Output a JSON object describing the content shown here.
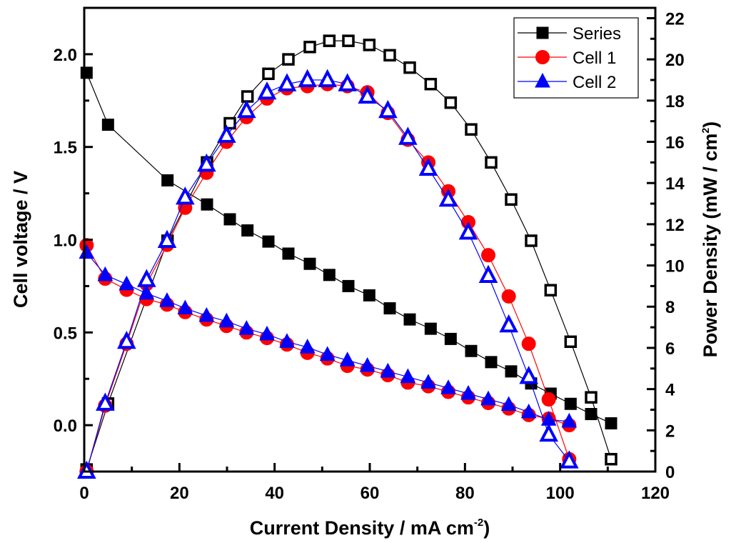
{
  "chart_data": {
    "type": "line",
    "title": "",
    "xlabel": "Current Density / mA cm",
    "xlabel_sup": "-2",
    "xlabel_suffix": ")",
    "ylabel": "Cell voltage / V",
    "y2label": "Power Density (mW / cm",
    "y2label_sup": "2",
    "y2label_suffix": ")",
    "xlim": [
      0,
      120
    ],
    "ylim": [
      -0.25,
      2.25
    ],
    "y2lim": [
      0,
      22.5
    ],
    "xticks": [
      0,
      20,
      40,
      60,
      80,
      100,
      120
    ],
    "yticks": [
      0.0,
      0.5,
      1.0,
      1.5,
      2.0
    ],
    "ytick_labels": [
      "0.0",
      "0.5",
      "1.0",
      "1.5",
      "2.0"
    ],
    "y2ticks": [
      0,
      2,
      4,
      6,
      8,
      10,
      12,
      14,
      16,
      18,
      20,
      22
    ],
    "grid": false,
    "legend_position": "top-right",
    "legend": [
      {
        "name": "Series",
        "color": "#000000",
        "marker": "square"
      },
      {
        "name": "Cell 1",
        "color": "#ff0000",
        "marker": "circle"
      },
      {
        "name": "Cell 2",
        "color": "#0000ff",
        "marker": "triangle"
      }
    ],
    "series": [
      {
        "name": "Series",
        "color": "#000000",
        "marker": "square",
        "current": [
          0.5,
          5,
          17.5,
          25.8,
          30.6,
          34.3,
          38.7,
          42.9,
          47.4,
          51.5,
          55.5,
          59.9,
          64.2,
          68.4,
          72.8,
          77,
          81.3,
          85.5,
          89.7,
          93.9,
          98,
          102.2,
          106.5,
          110.7
        ],
        "voltage": [
          1.9,
          1.62,
          1.32,
          1.19,
          1.11,
          1.05,
          0.99,
          0.925,
          0.87,
          0.81,
          0.75,
          0.7,
          0.63,
          0.57,
          0.52,
          0.465,
          0.4,
          0.34,
          0.29,
          0.225,
          0.17,
          0.115,
          0.06,
          0.01
        ],
        "power": [
          0.1,
          3.3,
          11.2,
          15.0,
          16.9,
          18.2,
          19.3,
          20.0,
          20.6,
          20.9,
          20.9,
          20.7,
          20.2,
          19.6,
          18.8,
          17.9,
          16.6,
          15.0,
          13.2,
          11.2,
          8.8,
          6.3,
          3.6,
          0.6
        ]
      },
      {
        "name": "Cell 1",
        "color": "#ff0000",
        "marker": "circle",
        "current": [
          0.5,
          4.4,
          8.9,
          13.1,
          17.4,
          21.2,
          25.7,
          29.9,
          34.1,
          38.4,
          42.6,
          46.9,
          51.1,
          55.3,
          59.5,
          63.8,
          68,
          72.3,
          76.5,
          80.7,
          84.9,
          89.2,
          93.4,
          97.6,
          101.9
        ],
        "voltage": [
          0.97,
          0.79,
          0.73,
          0.68,
          0.65,
          0.61,
          0.57,
          0.535,
          0.5,
          0.47,
          0.435,
          0.39,
          0.36,
          0.32,
          0.3,
          0.27,
          0.23,
          0.21,
          0.18,
          0.15,
          0.12,
          0.09,
          0.055,
          0.035,
          0.0
        ],
        "power": [
          0.0,
          3.2,
          6.2,
          9.1,
          11.0,
          12.8,
          14.5,
          16.0,
          17.2,
          18.1,
          18.6,
          18.7,
          18.8,
          18.7,
          18.4,
          17.4,
          16.1,
          15.0,
          13.6,
          12.1,
          10.5,
          8.5,
          6.2,
          3.5,
          0.6
        ]
      },
      {
        "name": "Cell 2",
        "color": "#0000ff",
        "marker": "triangle",
        "current": [
          0.5,
          4.4,
          8.9,
          13.1,
          17.4,
          21.2,
          25.7,
          29.9,
          34.1,
          38.4,
          42.6,
          46.9,
          51.1,
          55.3,
          59.5,
          63.8,
          68,
          72.3,
          76.5,
          80.7,
          84.9,
          89.2,
          93.4,
          97.6,
          101.9
        ],
        "voltage": [
          0.93,
          0.81,
          0.76,
          0.71,
          0.67,
          0.63,
          0.59,
          0.56,
          0.52,
          0.49,
          0.45,
          0.42,
          0.38,
          0.35,
          0.32,
          0.29,
          0.26,
          0.23,
          0.2,
          0.17,
          0.14,
          0.11,
          0.07,
          0.03,
          0.02
        ],
        "power": [
          0.0,
          3.3,
          6.3,
          9.3,
          11.2,
          13.3,
          14.9,
          16.3,
          17.5,
          18.4,
          18.8,
          19.0,
          19.0,
          18.8,
          18.2,
          17.5,
          16.2,
          14.7,
          13.2,
          11.6,
          9.5,
          7.1,
          4.6,
          1.8,
          0.5
        ]
      }
    ]
  }
}
